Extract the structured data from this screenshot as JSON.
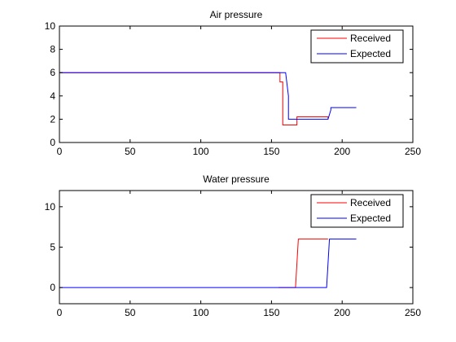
{
  "chart_data": [
    {
      "type": "line",
      "title": "Air pressure",
      "xlim": [
        0,
        250
      ],
      "ylim": [
        0,
        10
      ],
      "xticks": [
        0,
        50,
        100,
        150,
        200,
        250
      ],
      "yticks": [
        0,
        2,
        4,
        6,
        8,
        10
      ],
      "legend_position": "top-right",
      "grid": false,
      "series": [
        {
          "name": "Received",
          "color": "#ff0000",
          "x": [
            0,
            156,
            156,
            158,
            158,
            168,
            168,
            190,
            190
          ],
          "y": [
            6,
            6,
            5.2,
            5.2,
            1.5,
            1.5,
            2.2,
            2.2,
            2.0
          ]
        },
        {
          "name": "Expected",
          "color": "#0000ff",
          "x": [
            0,
            160,
            162,
            162,
            190,
            192,
            192,
            210
          ],
          "y": [
            6,
            6,
            4,
            2,
            2,
            2.8,
            3,
            3
          ]
        }
      ]
    },
    {
      "type": "line",
      "title": "Water pressure",
      "xlim": [
        0,
        250
      ],
      "ylim": [
        -2,
        12
      ],
      "xticks": [
        0,
        50,
        100,
        150,
        200,
        250
      ],
      "yticks": [
        0,
        5,
        10
      ],
      "legend_position": "top-right",
      "grid": false,
      "series": [
        {
          "name": "Received",
          "color": "#ff0000",
          "x": [
            155,
            167,
            169,
            190
          ],
          "y": [
            0,
            0,
            6,
            6
          ]
        },
        {
          "name": "Expected",
          "color": "#0000ff",
          "x": [
            0,
            189,
            191,
            210
          ],
          "y": [
            0,
            0,
            6,
            6
          ]
        }
      ]
    }
  ]
}
